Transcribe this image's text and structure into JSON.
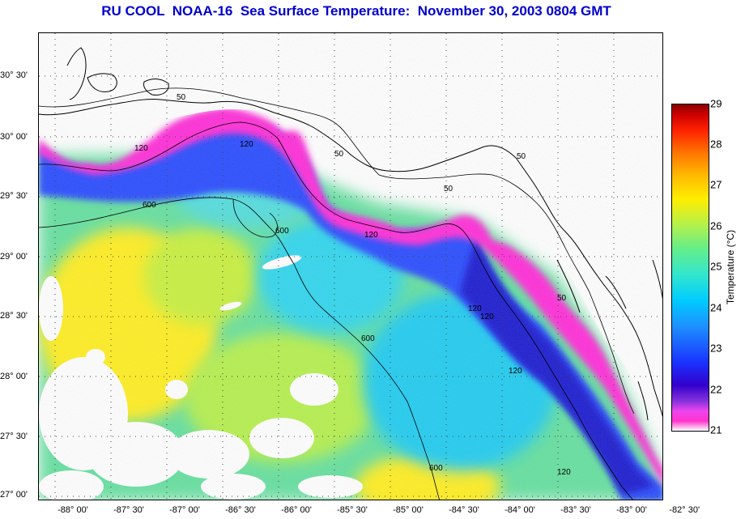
{
  "title": "RU COOL  NOAA-16  Sea Surface Temperature:  November 30, 2003 0804 GMT",
  "latitude_labels": [
    "30° 30'",
    "30° 00'",
    "29° 30'",
    "29° 00'",
    "28° 30'",
    "28° 00'",
    "27° 30'",
    "27° 00'"
  ],
  "longitude_labels": [
    "-88° 00'",
    "-87° 30'",
    "-87° 00'",
    "-86° 30'",
    "-86° 00'",
    "-85° 30'",
    "-85° 00'",
    "-84° 30'",
    "-84° 00'",
    "-83° 30'",
    "-83° 00'",
    "-82° 30'"
  ],
  "colorbar": {
    "title": "Temperature (°C)",
    "ticks": [
      "29",
      "28",
      "27",
      "26",
      "25",
      "24",
      "23",
      "22",
      "21"
    ]
  },
  "isobath_labels": [
    "50",
    "50",
    "50",
    "50",
    "50",
    "120",
    "120",
    "120",
    "120",
    "120",
    "120",
    "120",
    "600",
    "600",
    "600",
    "600"
  ],
  "colors": {
    "title": "#0000cc",
    "cold": "#ff33cc",
    "cool": "#3300cc",
    "mid": "#1e90ff",
    "warm": "#ffee00"
  }
}
